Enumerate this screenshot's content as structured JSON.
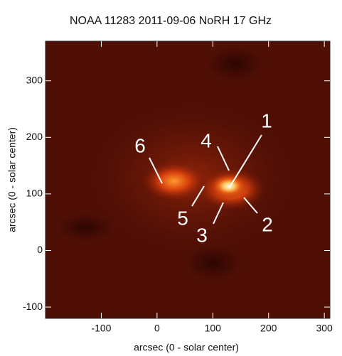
{
  "chart_data": {
    "type": "image",
    "title": "NOAA 11283 2011-09-06 NoRH 17 GHz",
    "xlabel": "arcsec (0 - solar center)",
    "ylabel": "arcsec (0 - solar center)",
    "xlim": [
      -200,
      310
    ],
    "xticks": [
      -100,
      0,
      100,
      200,
      300
    ],
    "ylim": [
      -120,
      370
    ],
    "yticks": [
      -100,
      0,
      100,
      200,
      300
    ],
    "annotations": [
      "1",
      "2",
      "3",
      "4",
      "5",
      "6"
    ]
  }
}
